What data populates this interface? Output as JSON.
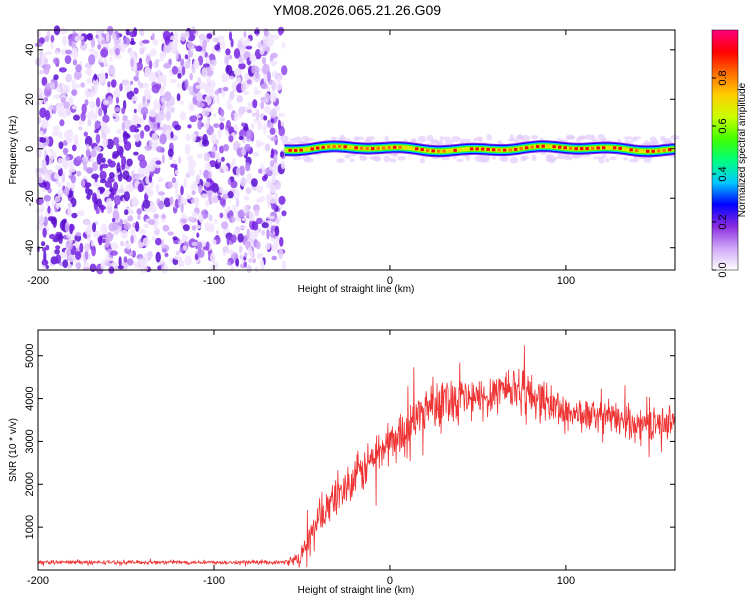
{
  "title": "YM08.2026.065.21.26.G09",
  "chart_data": [
    {
      "type": "heatmap",
      "name": "spectrogram",
      "xlabel": "Height of straight line (km)",
      "ylabel": "Frequency (Hz)",
      "xlim": [
        -200,
        162
      ],
      "ylim": [
        -49,
        48
      ],
      "xticks": [
        -200,
        -100,
        0,
        100
      ],
      "yticks": [
        -40,
        -20,
        0,
        20,
        40
      ],
      "noise_region_x": [
        -200,
        -60
      ],
      "signal_frequency_hz": 0,
      "signal_region_x": [
        -60,
        162
      ],
      "colorbar": {
        "label": "Normalized spectral amplitude",
        "range": [
          0,
          1
        ],
        "ticks": [
          0,
          0.2,
          0.4,
          0.6,
          0.8
        ],
        "tick_labels": [
          "0.0",
          "0.2",
          "0.4",
          "0.6",
          "0.8"
        ],
        "colors": [
          "#ffffff",
          "#cfa8f8",
          "#8a2be2",
          "#0000ff",
          "#00c8ff",
          "#00ff80",
          "#40ff00",
          "#c8ff00",
          "#ffd000",
          "#ff7000",
          "#ff0000",
          "#ff0080"
        ]
      }
    },
    {
      "type": "line",
      "name": "snr",
      "xlabel": "Height of straight line (km)",
      "ylabel": "SNR (10 * v/v)",
      "xlim": [
        -200,
        162
      ],
      "ylim": [
        0,
        5600
      ],
      "xticks": [
        -200,
        -100,
        0,
        100
      ],
      "yticks": [
        1000,
        2000,
        3000,
        4000,
        5000
      ],
      "color": "#ee3333",
      "envelope": {
        "x": [
          -200,
          -60,
          -52,
          -40,
          -30,
          -20,
          -10,
          0,
          10,
          20,
          30,
          40,
          50,
          60,
          70,
          80,
          90,
          100,
          110,
          120,
          130,
          140,
          150,
          162
        ],
        "mean": [
          180,
          180,
          250,
          1200,
          1800,
          2100,
          2600,
          3000,
          3300,
          3800,
          4000,
          4000,
          3950,
          4200,
          4300,
          4100,
          3900,
          3700,
          3600,
          3600,
          3500,
          3450,
          3400,
          3500
        ],
        "spread": [
          45,
          45,
          200,
          450,
          500,
          550,
          550,
          550,
          550,
          550,
          600,
          600,
          550,
          550,
          600,
          550,
          500,
          450,
          400,
          400,
          400,
          400,
          380,
          380
        ]
      }
    }
  ]
}
